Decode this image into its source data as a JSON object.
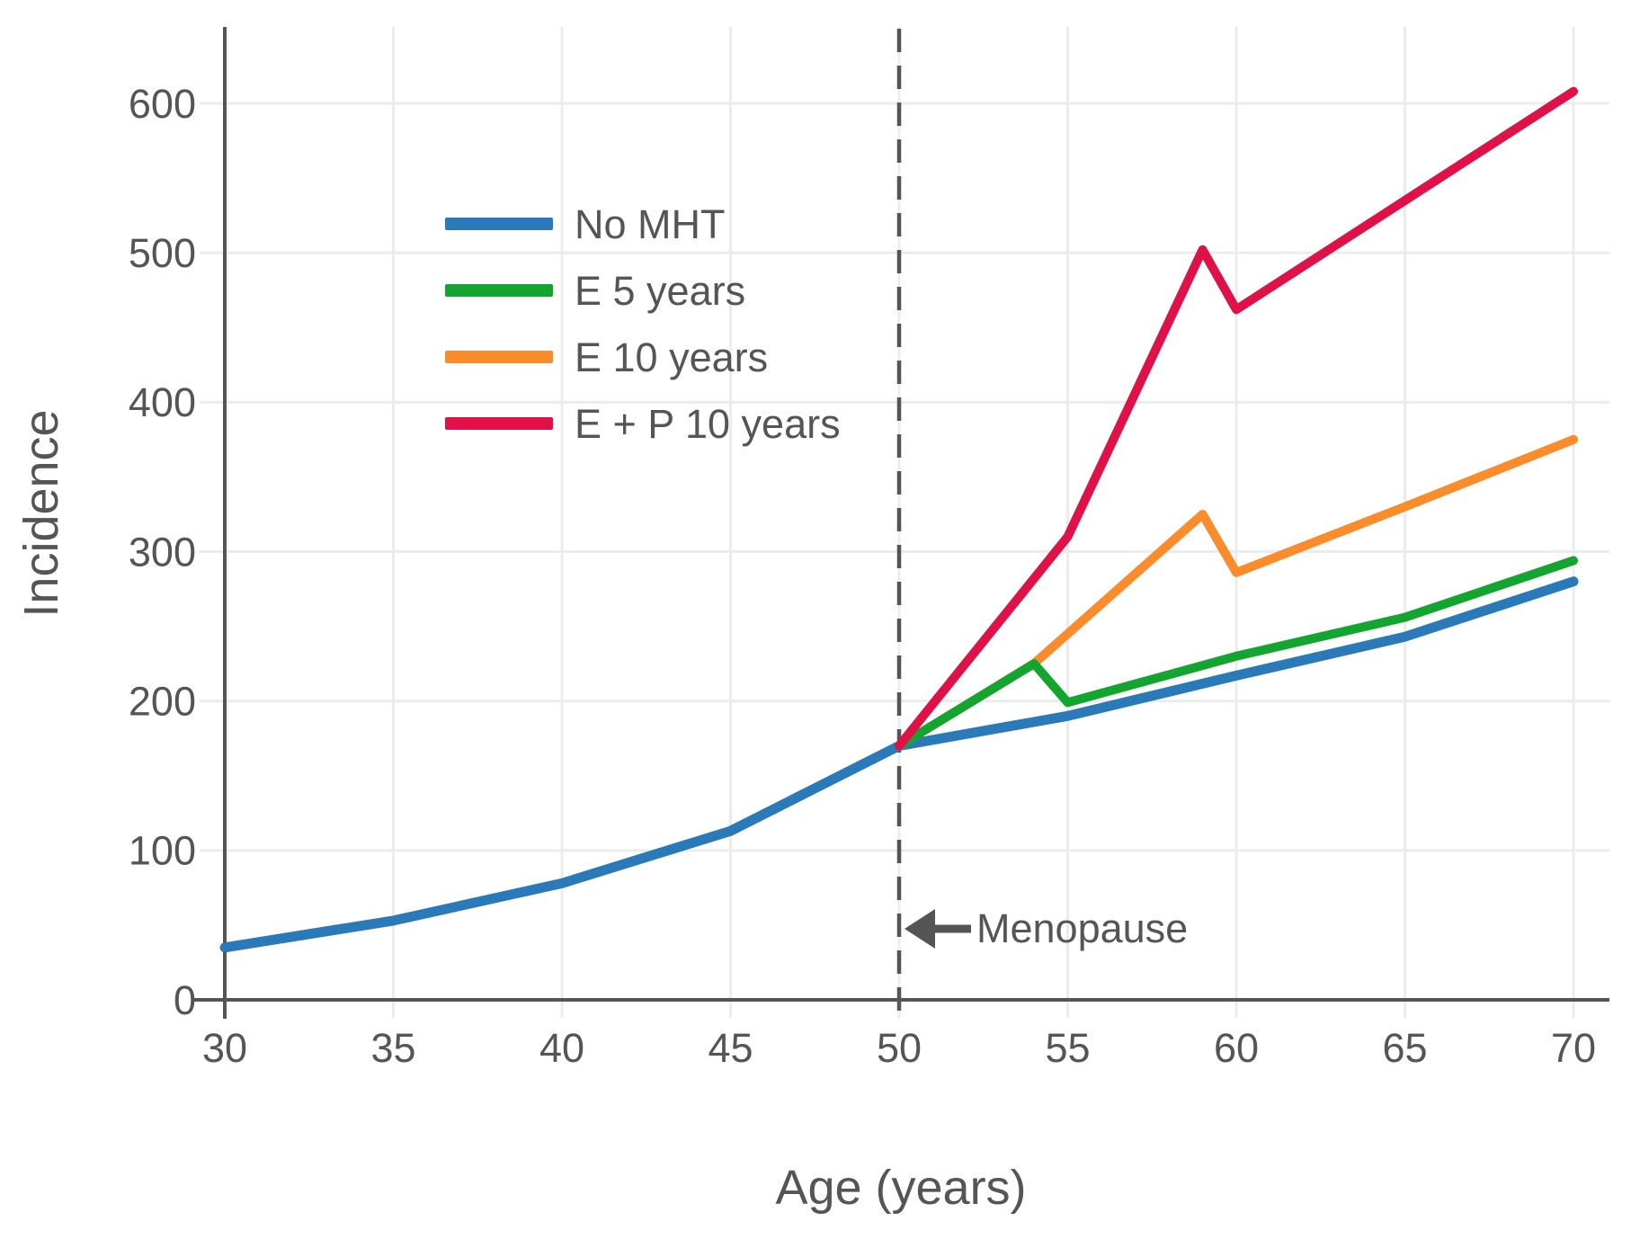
{
  "chart_data": {
    "type": "line",
    "title": "",
    "xlabel": "Age (years)",
    "ylabel": "Incidence",
    "x_ticks": [
      30,
      35,
      40,
      45,
      50,
      55,
      60,
      65,
      70
    ],
    "y_ticks": [
      0,
      100,
      200,
      300,
      400,
      500,
      600
    ],
    "xlim": [
      30,
      70
    ],
    "ylim": [
      0,
      650
    ],
    "grid": true,
    "legend_position": "upper left inside",
    "grid_color": "#ececec",
    "axis_color": "#555555",
    "text_color": "#555555",
    "annotation": {
      "text": "Menopause",
      "x": 50,
      "style": "dashed vertical line with left arrow"
    },
    "series": [
      {
        "name": "No MHT",
        "color": "#2a7ab9",
        "x": [
          30,
          35,
          40,
          45,
          50,
          55,
          60,
          65,
          70
        ],
        "y": [
          35,
          53,
          78,
          113,
          170,
          190,
          217,
          243,
          280
        ]
      },
      {
        "name": "E 5 years",
        "color": "#13a52f",
        "x": [
          50,
          54,
          55,
          60,
          65,
          70
        ],
        "y": [
          170,
          225,
          199,
          230,
          256,
          294
        ]
      },
      {
        "name": "E 10 years",
        "color": "#fb8c2b",
        "x": [
          50,
          54,
          59,
          60,
          65,
          70
        ],
        "y": [
          170,
          225,
          325,
          286,
          330,
          375
        ]
      },
      {
        "name": "E + P 10 years",
        "color": "#e01147",
        "x": [
          50,
          55,
          59,
          60,
          65,
          70
        ],
        "y": [
          170,
          310,
          502,
          462,
          535,
          608
        ]
      }
    ]
  }
}
